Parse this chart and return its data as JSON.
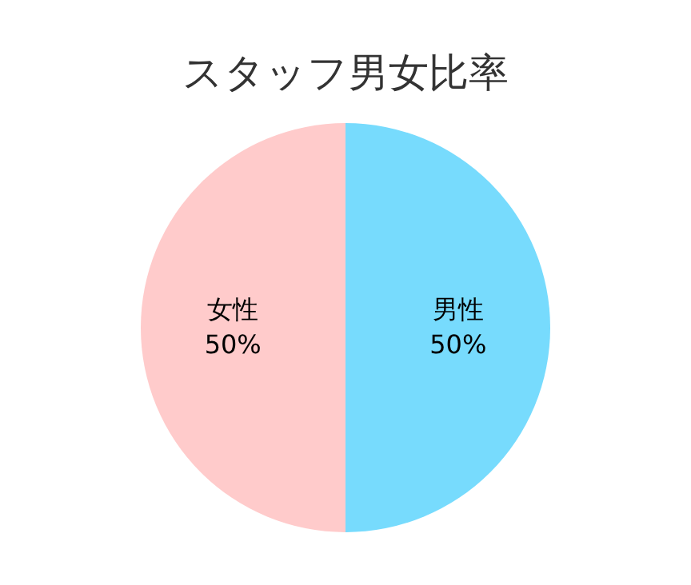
{
  "chart_data": {
    "type": "pie",
    "title": "スタッフ男女比率",
    "categories": [
      "男性",
      "女性"
    ],
    "values": [
      50,
      50
    ],
    "colors": [
      "#77dbfd",
      "#ffcbcb"
    ],
    "value_labels": [
      "50%",
      "50%"
    ]
  }
}
